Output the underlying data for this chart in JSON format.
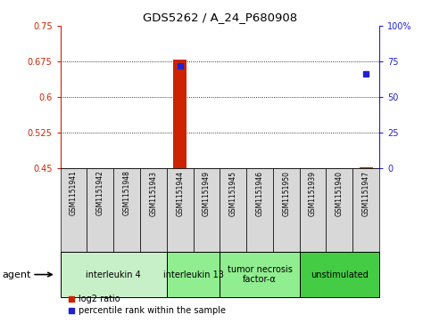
{
  "title": "GDS5262 / A_24_P680908",
  "samples": [
    "GSM1151941",
    "GSM1151942",
    "GSM1151948",
    "GSM1151943",
    "GSM1151944",
    "GSM1151949",
    "GSM1151945",
    "GSM1151946",
    "GSM1151950",
    "GSM1151939",
    "GSM1151940",
    "GSM1151947"
  ],
  "log2_ratio": [
    null,
    null,
    null,
    null,
    0.678,
    null,
    null,
    null,
    null,
    null,
    null,
    0.451
  ],
  "percentile_rank": [
    null,
    null,
    null,
    null,
    72,
    null,
    null,
    null,
    null,
    null,
    null,
    66
  ],
  "baseline_log2": 0.45,
  "ylim_left": [
    0.45,
    0.75
  ],
  "ylim_right": [
    0,
    100
  ],
  "yticks_left": [
    0.45,
    0.525,
    0.6,
    0.675,
    0.75
  ],
  "yticks_right": [
    0,
    25,
    50,
    75,
    100
  ],
  "ytick_labels_left": [
    "0.45",
    "0.525",
    "0.6",
    "0.675",
    "0.75"
  ],
  "ytick_labels_right": [
    "0",
    "25",
    "50",
    "75",
    "100%"
  ],
  "group_defs": [
    {
      "indices": [
        0,
        1,
        2,
        3
      ],
      "label": "interleukin 4",
      "color": "#c8f0c8"
    },
    {
      "indices": [
        4,
        5
      ],
      "label": "interleukin 13",
      "color": "#90ee90"
    },
    {
      "indices": [
        6,
        7,
        8
      ],
      "label": "tumor necrosis\nfactor-α",
      "color": "#90ee90"
    },
    {
      "indices": [
        9,
        10,
        11
      ],
      "label": "unstimulated",
      "color": "#44cc44"
    }
  ],
  "bar_color": "#cc2200",
  "dot_color": "#2222cc",
  "left_axis_color": "#cc2200",
  "right_axis_color": "#2222cc",
  "agent_label": "agent",
  "legend_log2": "log2 ratio",
  "legend_pct": "percentile rank within the sample",
  "bg_color": "#ffffff",
  "plot_bg_color": "#ffffff",
  "sample_box_color": "#d8d8d8",
  "fig_width": 4.83,
  "fig_height": 3.63,
  "fig_dpi": 100
}
